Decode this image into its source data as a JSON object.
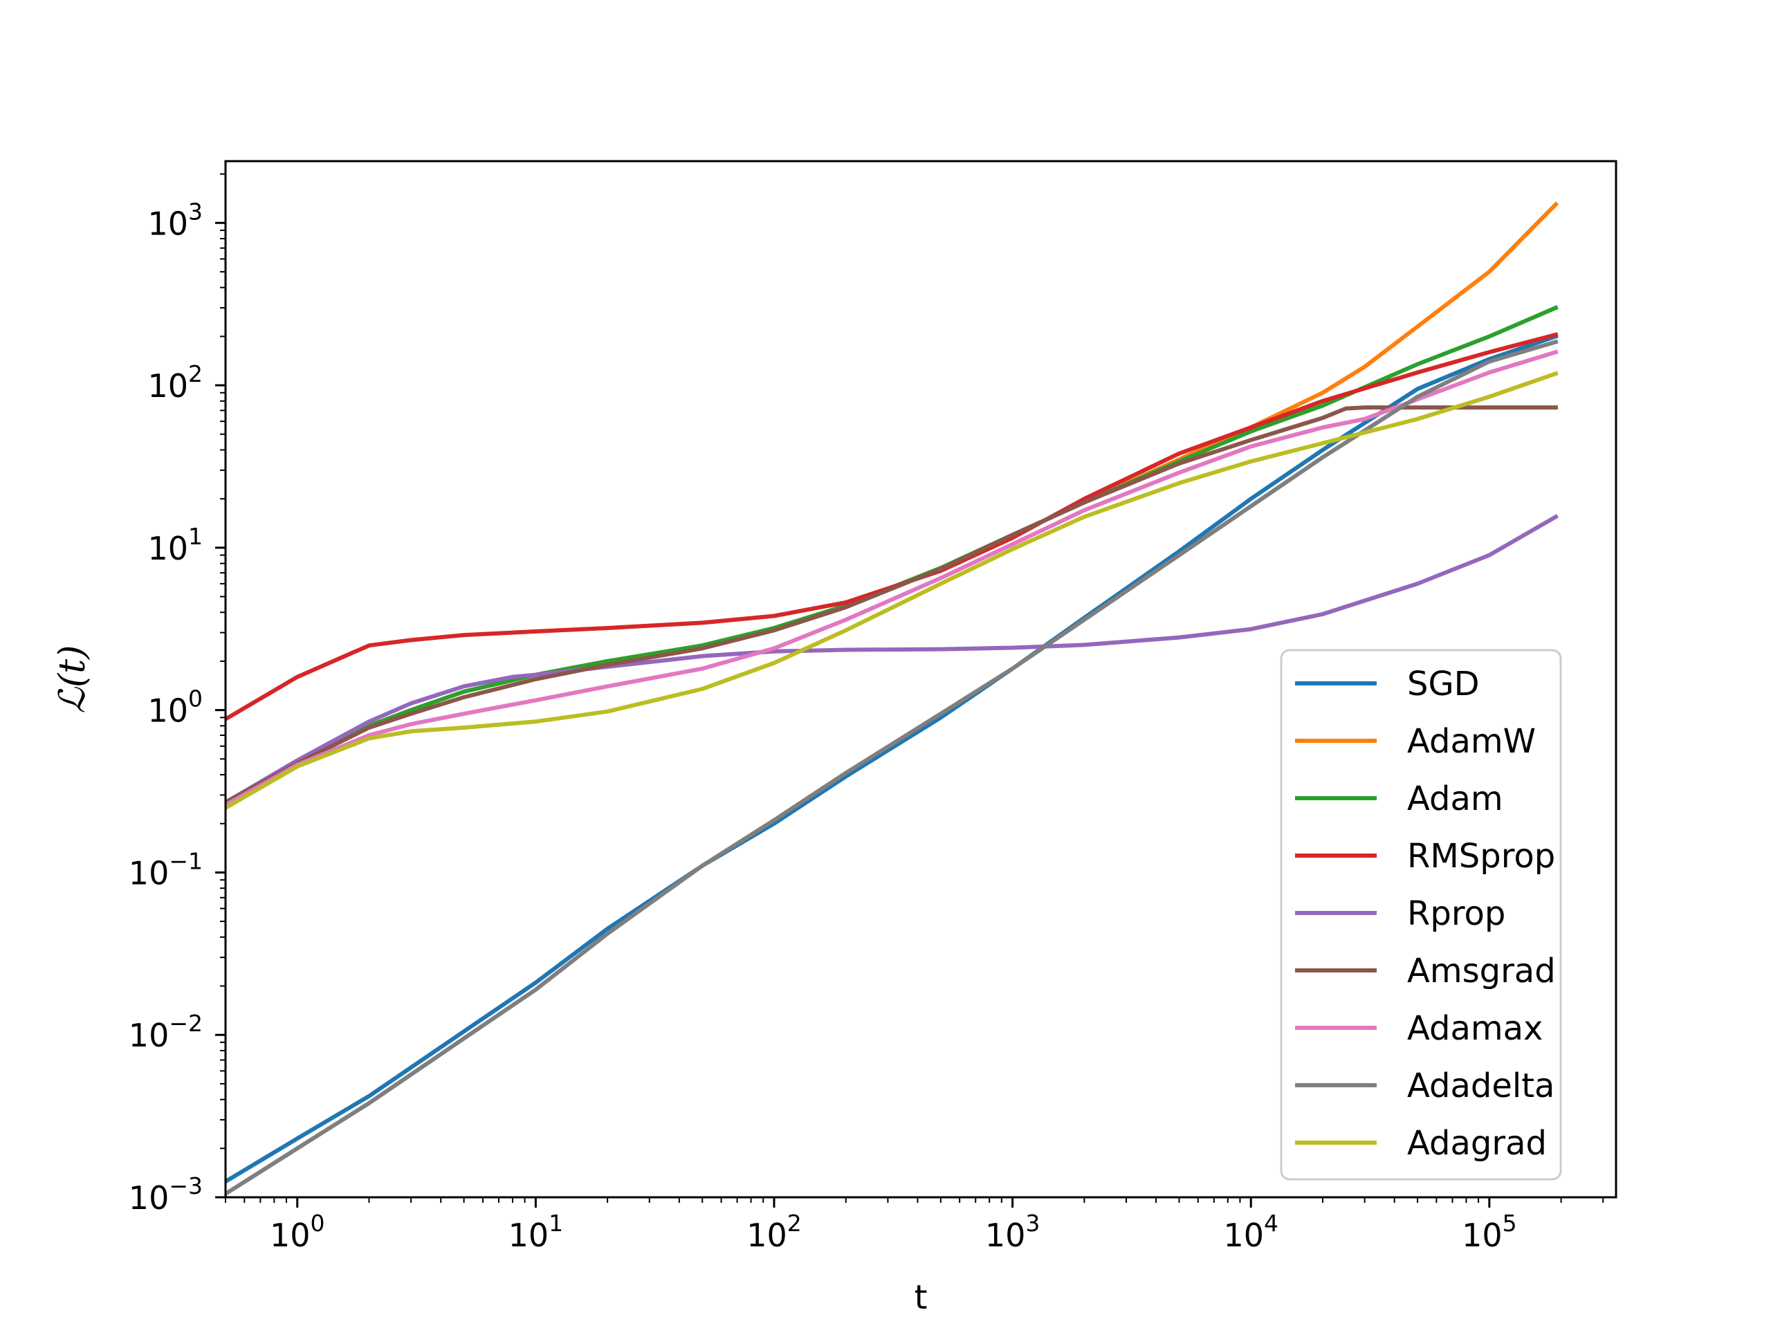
{
  "chart_data": {
    "type": "line",
    "title": "",
    "xlabel": "t",
    "ylabel": "ℒ(t)",
    "xscale": "log",
    "yscale": "log",
    "xlim": [
      0.5,
      340000
    ],
    "ylim": [
      0.001,
      2400
    ],
    "xticks": [
      {
        "base": "10",
        "exp": "0",
        "value": 1
      },
      {
        "base": "10",
        "exp": "1",
        "value": 10
      },
      {
        "base": "10",
        "exp": "2",
        "value": 100
      },
      {
        "base": "10",
        "exp": "3",
        "value": 1000
      },
      {
        "base": "10",
        "exp": "4",
        "value": 10000
      },
      {
        "base": "10",
        "exp": "5",
        "value": 100000
      }
    ],
    "yticks": [
      {
        "base": "10",
        "exp": "−3",
        "value": 0.001
      },
      {
        "base": "10",
        "exp": "−2",
        "value": 0.01
      },
      {
        "base": "10",
        "exp": "−1",
        "value": 0.1
      },
      {
        "base": "10",
        "exp": "0",
        "value": 1
      },
      {
        "base": "10",
        "exp": "1",
        "value": 10
      },
      {
        "base": "10",
        "exp": "2",
        "value": 100
      },
      {
        "base": "10",
        "exp": "3",
        "value": 1000
      }
    ],
    "legend_position": "lower-right",
    "series": [
      {
        "name": "SGD",
        "color": "#1f77b4",
        "points": [
          [
            0.5,
            0.00125
          ],
          [
            1,
            0.0023
          ],
          [
            2,
            0.0042
          ],
          [
            5,
            0.0105
          ],
          [
            10,
            0.021
          ],
          [
            20,
            0.045
          ],
          [
            50,
            0.11
          ],
          [
            100,
            0.2
          ],
          [
            200,
            0.39
          ],
          [
            500,
            0.9
          ],
          [
            1000,
            1.8
          ],
          [
            2000,
            3.7
          ],
          [
            5000,
            9.5
          ],
          [
            10000,
            20
          ],
          [
            20000,
            40
          ],
          [
            50000,
            95
          ],
          [
            100000,
            145
          ],
          [
            190000,
            200
          ]
        ]
      },
      {
        "name": "AdamW",
        "color": "#ff7f0e",
        "points": [
          [
            0.5,
            0.27
          ],
          [
            1,
            0.48
          ],
          [
            2,
            0.8
          ],
          [
            3,
            1.0
          ],
          [
            5,
            1.3
          ],
          [
            10,
            1.65
          ],
          [
            20,
            2.0
          ],
          [
            50,
            2.5
          ],
          [
            100,
            3.2
          ],
          [
            200,
            4.4
          ],
          [
            500,
            7.5
          ],
          [
            1000,
            12
          ],
          [
            2000,
            19
          ],
          [
            5000,
            35
          ],
          [
            10000,
            55
          ],
          [
            20000,
            90
          ],
          [
            30000,
            130
          ],
          [
            50000,
            230
          ],
          [
            100000,
            500
          ],
          [
            190000,
            1300
          ]
        ]
      },
      {
        "name": "Adam",
        "color": "#2ca02c",
        "points": [
          [
            0.5,
            0.27
          ],
          [
            1,
            0.48
          ],
          [
            2,
            0.8
          ],
          [
            3,
            1.0
          ],
          [
            5,
            1.3
          ],
          [
            10,
            1.65
          ],
          [
            20,
            2.0
          ],
          [
            50,
            2.5
          ],
          [
            100,
            3.2
          ],
          [
            200,
            4.4
          ],
          [
            500,
            7.5
          ],
          [
            1000,
            12
          ],
          [
            2000,
            19
          ],
          [
            5000,
            34
          ],
          [
            10000,
            52
          ],
          [
            20000,
            75
          ],
          [
            50000,
            135
          ],
          [
            100000,
            200
          ],
          [
            190000,
            300
          ]
        ]
      },
      {
        "name": "RMSprop",
        "color": "#d62728",
        "points": [
          [
            0.5,
            0.88
          ],
          [
            1,
            1.6
          ],
          [
            2,
            2.5
          ],
          [
            3,
            2.7
          ],
          [
            5,
            2.9
          ],
          [
            10,
            3.05
          ],
          [
            20,
            3.2
          ],
          [
            50,
            3.45
          ],
          [
            100,
            3.8
          ],
          [
            200,
            4.6
          ],
          [
            500,
            7.2
          ],
          [
            1000,
            11.5
          ],
          [
            2000,
            20
          ],
          [
            5000,
            38
          ],
          [
            10000,
            55
          ],
          [
            20000,
            80
          ],
          [
            50000,
            120
          ],
          [
            100000,
            160
          ],
          [
            190000,
            205
          ]
        ]
      },
      {
        "name": "Rprop",
        "color": "#9467bd",
        "points": [
          [
            0.5,
            0.27
          ],
          [
            1,
            0.49
          ],
          [
            2,
            0.85
          ],
          [
            3,
            1.1
          ],
          [
            5,
            1.4
          ],
          [
            8,
            1.6
          ],
          [
            10,
            1.65
          ],
          [
            20,
            1.85
          ],
          [
            50,
            2.15
          ],
          [
            100,
            2.3
          ],
          [
            200,
            2.35
          ],
          [
            500,
            2.37
          ],
          [
            1000,
            2.42
          ],
          [
            2000,
            2.52
          ],
          [
            5000,
            2.8
          ],
          [
            10000,
            3.15
          ],
          [
            20000,
            3.9
          ],
          [
            50000,
            6.0
          ],
          [
            100000,
            9.0
          ],
          [
            190000,
            15.5
          ]
        ]
      },
      {
        "name": "Amsgrad",
        "color": "#8c564b",
        "points": [
          [
            0.5,
            0.27
          ],
          [
            1,
            0.47
          ],
          [
            2,
            0.78
          ],
          [
            3,
            0.95
          ],
          [
            5,
            1.2
          ],
          [
            10,
            1.55
          ],
          [
            20,
            1.9
          ],
          [
            50,
            2.4
          ],
          [
            100,
            3.1
          ],
          [
            200,
            4.3
          ],
          [
            500,
            7.4
          ],
          [
            1000,
            12
          ],
          [
            2000,
            19
          ],
          [
            5000,
            33
          ],
          [
            10000,
            46
          ],
          [
            20000,
            63
          ],
          [
            25000,
            72
          ],
          [
            30000,
            73
          ],
          [
            50000,
            73
          ],
          [
            100000,
            73
          ],
          [
            190000,
            73
          ]
        ]
      },
      {
        "name": "Adamax",
        "color": "#e377c2",
        "points": [
          [
            0.5,
            0.26
          ],
          [
            1,
            0.46
          ],
          [
            2,
            0.7
          ],
          [
            3,
            0.82
          ],
          [
            5,
            0.95
          ],
          [
            10,
            1.15
          ],
          [
            20,
            1.4
          ],
          [
            50,
            1.8
          ],
          [
            100,
            2.4
          ],
          [
            200,
            3.6
          ],
          [
            500,
            6.5
          ],
          [
            1000,
            10.5
          ],
          [
            2000,
            17
          ],
          [
            5000,
            29
          ],
          [
            10000,
            42
          ],
          [
            20000,
            55
          ],
          [
            30000,
            62
          ],
          [
            50000,
            82
          ],
          [
            100000,
            120
          ],
          [
            190000,
            160
          ]
        ]
      },
      {
        "name": "Adadelta",
        "color": "#7f7f7f",
        "points": [
          [
            0.5,
            0.00105
          ],
          [
            1,
            0.002
          ],
          [
            2,
            0.0038
          ],
          [
            5,
            0.0095
          ],
          [
            10,
            0.019
          ],
          [
            20,
            0.042
          ],
          [
            50,
            0.11
          ],
          [
            100,
            0.21
          ],
          [
            200,
            0.41
          ],
          [
            500,
            0.95
          ],
          [
            1000,
            1.8
          ],
          [
            2000,
            3.6
          ],
          [
            5000,
            9
          ],
          [
            10000,
            18
          ],
          [
            20000,
            36
          ],
          [
            50000,
            85
          ],
          [
            100000,
            140
          ],
          [
            190000,
            185
          ]
        ]
      },
      {
        "name": "Adagrad",
        "color": "#bcbd22",
        "points": [
          [
            0.5,
            0.25
          ],
          [
            1,
            0.45
          ],
          [
            2,
            0.67
          ],
          [
            3,
            0.74
          ],
          [
            5,
            0.78
          ],
          [
            10,
            0.85
          ],
          [
            20,
            0.98
          ],
          [
            50,
            1.35
          ],
          [
            100,
            1.95
          ],
          [
            200,
            3.1
          ],
          [
            500,
            6.0
          ],
          [
            1000,
            9.8
          ],
          [
            2000,
            15.5
          ],
          [
            5000,
            25
          ],
          [
            10000,
            34
          ],
          [
            20000,
            44
          ],
          [
            50000,
            62
          ],
          [
            100000,
            85
          ],
          [
            190000,
            118
          ]
        ]
      }
    ]
  }
}
